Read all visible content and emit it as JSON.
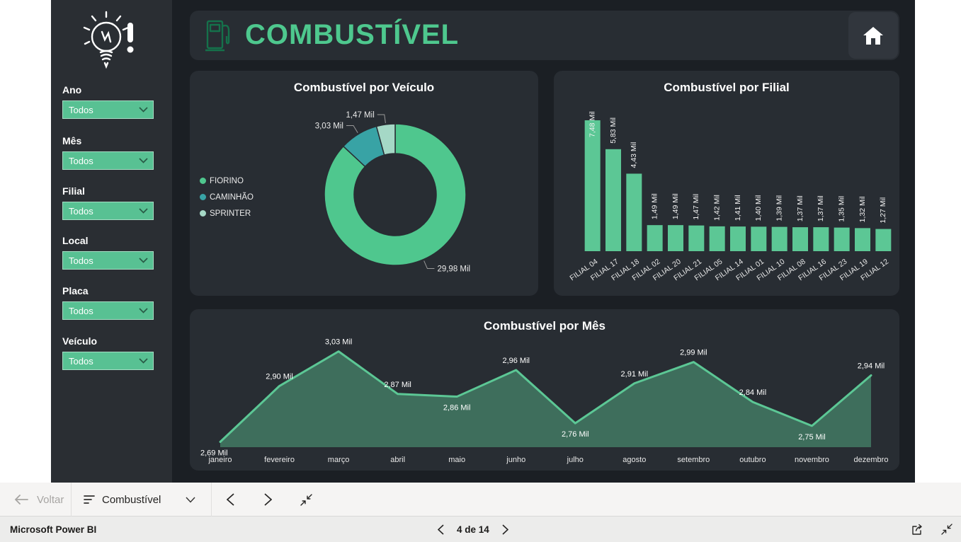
{
  "header": {
    "title": "COMBUSTÍVEL"
  },
  "sidebar": {
    "filters": [
      {
        "label": "Ano",
        "value": "Todos"
      },
      {
        "label": "Mês",
        "value": "Todos"
      },
      {
        "label": "Filial",
        "value": "Todos"
      },
      {
        "label": "Local",
        "value": "Todos"
      },
      {
        "label": "Placa",
        "value": "Todos"
      },
      {
        "label": "Veículo",
        "value": "Todos"
      }
    ]
  },
  "chart_data": [
    {
      "type": "pie",
      "donut": true,
      "title": "Combustível por Veículo",
      "categories": [
        "FIORINO",
        "CAMINHÃO",
        "SPRINTER"
      ],
      "values": [
        29.98,
        3.03,
        1.47
      ],
      "labels": [
        "29,98 Mil",
        "3,03 Mil",
        "1,47 Mil"
      ],
      "colors": [
        "#4fc78e",
        "#38a3a5",
        "#a5d8c6"
      ],
      "legend_position": "left"
    },
    {
      "type": "bar",
      "title": "Combustível por Filial",
      "categories": [
        "FILIAL 04",
        "FILIAL 17",
        "FILIAL 18",
        "FILIAL 02",
        "FILIAL 20",
        "FILIAL 21",
        "FILIAL 05",
        "FILIAL 14",
        "FILIAL 01",
        "FILIAL 10",
        "FILIAL 08",
        "FILIAL 16",
        "FILIAL 23",
        "FILIAL 19",
        "FILIAL 12"
      ],
      "values": [
        7.48,
        5.83,
        4.43,
        1.49,
        1.49,
        1.47,
        1.42,
        1.41,
        1.4,
        1.39,
        1.37,
        1.37,
        1.35,
        1.32,
        1.27
      ],
      "labels": [
        "7,48 Mil",
        "5,83 Mil",
        "4,43 Mil",
        "1,49 Mil",
        "1,49 Mil",
        "1,47 Mil",
        "1,42 Mil",
        "1,41 Mil",
        "1,40 Mil",
        "1,39 Mil",
        "1,37 Mil",
        "1,37 Mil",
        "1,35 Mil",
        "1,32 Mil",
        "1,27 Mil"
      ],
      "bar_color": "#5cc795",
      "ylim": [
        0,
        7.48
      ]
    },
    {
      "type": "area",
      "title": "Combustível por Mês",
      "categories": [
        "janeiro",
        "fevereiro",
        "março",
        "abril",
        "maio",
        "junho",
        "julho",
        "agosto",
        "setembro",
        "outubro",
        "novembro",
        "dezembro"
      ],
      "values": [
        2.69,
        2.9,
        3.03,
        2.87,
        2.86,
        2.96,
        2.76,
        2.91,
        2.99,
        2.84,
        2.75,
        2.94
      ],
      "labels": [
        "2,69 Mil",
        "2,90 Mil",
        "3,03 Mil",
        "2,87 Mil",
        "2,86 Mil",
        "2,96 Mil",
        "2,76 Mil",
        "2,91 Mil",
        "2,99 Mil",
        "2,84 Mil",
        "2,75 Mil",
        "2,94 Mil"
      ],
      "label_positions": [
        "below",
        "above",
        "above",
        "above",
        "below",
        "above",
        "below",
        "above",
        "above",
        "above",
        "below",
        "above"
      ],
      "line_color": "#5cc795",
      "fill_color": "rgba(92,199,149,0.42)",
      "ylim": [
        2.67,
        3.1
      ]
    }
  ],
  "nav": {
    "back_label": "Voltar",
    "page_selector_label": "Combustível"
  },
  "footer": {
    "brand": "Microsoft Power BI",
    "pagination": "4 de 14"
  },
  "icons": [
    "lightbulb-exclamation-icon",
    "fuel-pump-icon",
    "home-icon",
    "arrow-left-icon",
    "page-list-icon",
    "chevron-down-icon",
    "chevron-left-icon",
    "chevron-right-icon",
    "collapse-arrows-icon",
    "share-icon"
  ],
  "colors": {
    "accent_green": "#4ec88e",
    "slicer_green": "#58c193",
    "backdrop": "#1b1f24",
    "sidebar": "#2a2e33",
    "panel": "#282d33"
  }
}
